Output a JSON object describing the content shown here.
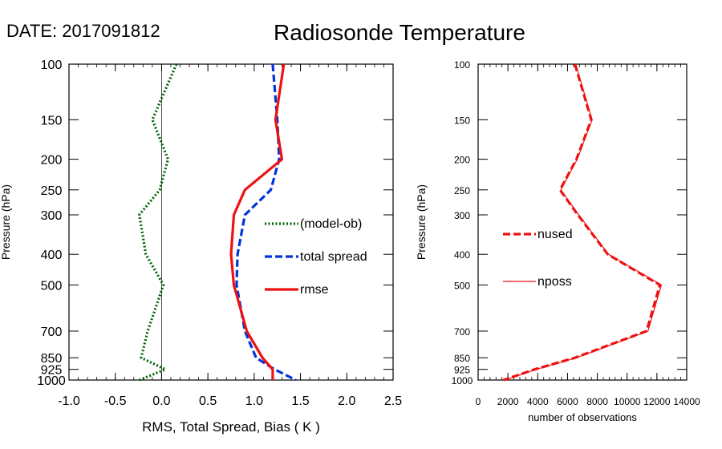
{
  "header": {
    "date_label": "DATE: 2017091812",
    "title": "Radiosonde Temperature"
  },
  "chart_data": [
    {
      "type": "line",
      "title": "",
      "xlabel": "RMS, Total Spread, Bias ( K )",
      "ylabel": "Pressure (hPa)",
      "xlim": [
        -1.0,
        2.5
      ],
      "ylim": [
        1000,
        100
      ],
      "y_scale": "log",
      "x_ticks": [
        "-1.0",
        "-0.5",
        "0.0",
        "0.5",
        "1.0",
        "1.5",
        "2.0",
        "2.5"
      ],
      "y_ticks": [
        "100",
        "150",
        "200",
        "250",
        "300",
        "400",
        "500",
        "700",
        "850",
        "925",
        "1000"
      ],
      "zero_line": true,
      "grid": false,
      "legend_position": "right-middle",
      "series": [
        {
          "name": "(model-ob)",
          "color": "#006400",
          "style": "dotted",
          "points": [
            [
              0.16,
              100
            ],
            [
              -0.1,
              150
            ],
            [
              0.07,
              200
            ],
            [
              -0.02,
              250
            ],
            [
              -0.24,
              300
            ],
            [
              -0.17,
              400
            ],
            [
              0.02,
              500
            ],
            [
              -0.15,
              700
            ],
            [
              -0.22,
              850
            ],
            [
              0.04,
              925
            ],
            [
              -0.24,
              1000
            ]
          ]
        },
        {
          "name": "total spread",
          "color": "#0033dd",
          "style": "dashed",
          "points": [
            [
              1.2,
              100
            ],
            [
              1.25,
              150
            ],
            [
              1.27,
              200
            ],
            [
              1.18,
              250
            ],
            [
              0.9,
              300
            ],
            [
              0.82,
              400
            ],
            [
              0.81,
              500
            ],
            [
              0.9,
              700
            ],
            [
              1.02,
              850
            ],
            [
              1.22,
              925
            ],
            [
              1.45,
              1000
            ]
          ]
        },
        {
          "name": "rmse",
          "color": "#ee1111",
          "style": "solid",
          "points": [
            [
              1.32,
              100
            ],
            [
              1.23,
              150
            ],
            [
              1.3,
              200
            ],
            [
              0.9,
              250
            ],
            [
              0.78,
              300
            ],
            [
              0.75,
              400
            ],
            [
              0.78,
              500
            ],
            [
              0.92,
              700
            ],
            [
              1.09,
              850
            ],
            [
              1.2,
              925
            ],
            [
              1.2,
              1000
            ]
          ]
        }
      ]
    },
    {
      "type": "line",
      "title": "",
      "xlabel": "number of observations",
      "ylabel": "Pressure (hPa)",
      "xlim": [
        0,
        14000
      ],
      "ylim": [
        1000,
        100
      ],
      "y_scale": "log",
      "x_ticks": [
        "0",
        "2000",
        "4000",
        "6000",
        "8000",
        "10000",
        "12000",
        "14000"
      ],
      "y_ticks": [
        "100",
        "150",
        "200",
        "250",
        "300",
        "400",
        "500",
        "700",
        "850",
        "925",
        "1000"
      ],
      "grid": false,
      "legend_position": "left-middle",
      "series": [
        {
          "name": "nused",
          "color": "#ee1111",
          "style": "dashed",
          "points": [
            [
              6500,
              100
            ],
            [
              7600,
              150
            ],
            [
              6600,
              200
            ],
            [
              5500,
              250
            ],
            [
              6700,
              300
            ],
            [
              8700,
              400
            ],
            [
              12200,
              500
            ],
            [
              11300,
              700
            ],
            [
              6500,
              850
            ],
            [
              3800,
              925
            ],
            [
              1700,
              1000
            ]
          ]
        },
        {
          "name": "nposs",
          "color": "#ee1111",
          "style": "solid",
          "points": [
            [
              6550,
              100
            ],
            [
              7650,
              150
            ],
            [
              6650,
              200
            ],
            [
              5550,
              250
            ],
            [
              6750,
              300
            ],
            [
              8750,
              400
            ],
            [
              12300,
              500
            ],
            [
              11400,
              700
            ],
            [
              6600,
              850
            ],
            [
              3900,
              925
            ],
            [
              1800,
              1000
            ]
          ]
        }
      ]
    }
  ]
}
